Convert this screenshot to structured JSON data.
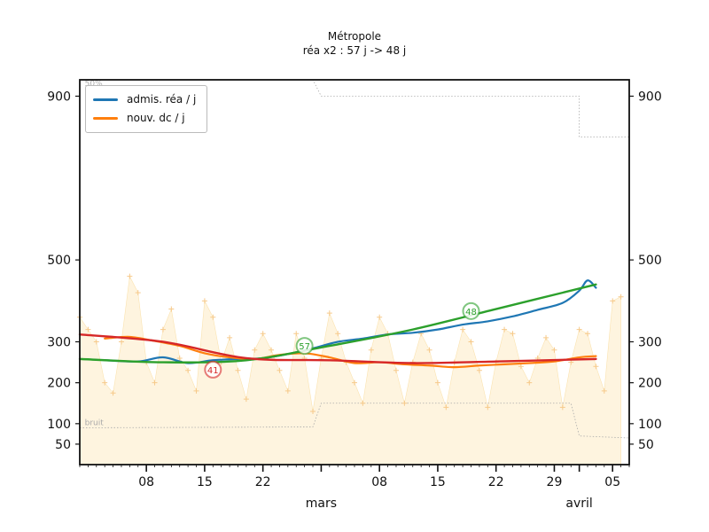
{
  "chart_data": {
    "type": "line",
    "title": "Métropole",
    "subtitle": "réa x2 : 57 j -> 48 j",
    "ylim": [
      0,
      940
    ],
    "grid": false,
    "legend_position": "top-left",
    "y_ticks": [
      50,
      100,
      200,
      300,
      500,
      900
    ],
    "x_ticks": [
      {
        "day": 8,
        "label": "08"
      },
      {
        "day": 15,
        "label": "15"
      },
      {
        "day": 22,
        "label": "22"
      },
      {
        "day": 29,
        "label": ""
      },
      {
        "day": 36,
        "label": "08"
      },
      {
        "day": 43,
        "label": "15"
      },
      {
        "day": 50,
        "label": "22"
      },
      {
        "day": 57,
        "label": "29"
      },
      {
        "day": 60,
        "label": ""
      },
      {
        "day": 64,
        "label": "05"
      }
    ],
    "month_labels": [
      {
        "day": 29,
        "label": "mars"
      },
      {
        "day": 60,
        "label": "avril"
      }
    ],
    "band_top_label": "50%",
    "band_bottom_label": "bruit",
    "series": [
      {
        "name": "admis. réa / j",
        "color": "#1f77b4",
        "x": [
          3,
          7,
          10,
          13,
          16,
          19,
          22,
          25,
          28,
          31,
          34,
          37,
          40,
          43,
          46,
          49,
          52,
          55,
          58,
          60,
          61,
          62
        ],
        "y": [
          255,
          252,
          262,
          248,
          255,
          258,
          260,
          270,
          284,
          300,
          308,
          318,
          322,
          330,
          342,
          350,
          362,
          378,
          395,
          425,
          450,
          432
        ]
      },
      {
        "name": "nouv. dc / j",
        "color": "#ff7f0e",
        "x": [
          3,
          6,
          9,
          12,
          15,
          18,
          21,
          24,
          27,
          30,
          33,
          36,
          39,
          42,
          45,
          48,
          51,
          54,
          57,
          60,
          62
        ],
        "y": [
          308,
          312,
          302,
          290,
          272,
          262,
          258,
          268,
          272,
          262,
          248,
          250,
          245,
          242,
          238,
          242,
          245,
          248,
          252,
          262,
          265
        ]
      }
    ],
    "trend_lines": [
      {
        "color": "#2ca02c",
        "x": [
          0,
          10,
          20,
          30,
          40,
          50,
          62
        ],
        "y": [
          258,
          250,
          255,
          290,
          330,
          380,
          440
        ]
      },
      {
        "color": "#d62728",
        "x": [
          0,
          10,
          20,
          30,
          40,
          50,
          62
        ],
        "y": [
          318,
          300,
          260,
          255,
          248,
          252,
          258
        ]
      }
    ],
    "daily_points": {
      "x": [
        0,
        1,
        2,
        3,
        4,
        5,
        6,
        7,
        8,
        9,
        10,
        11,
        12,
        13,
        14,
        15,
        16,
        17,
        18,
        19,
        20,
        21,
        22,
        23,
        24,
        25,
        26,
        27,
        28,
        29,
        30,
        31,
        32,
        33,
        34,
        35,
        36,
        37,
        38,
        39,
        40,
        41,
        42,
        43,
        44,
        45,
        46,
        47,
        48,
        49,
        50,
        51,
        52,
        53,
        54,
        55,
        56,
        57,
        58,
        59,
        60,
        61,
        62,
        63,
        64,
        65
      ],
      "y": [
        360,
        330,
        300,
        200,
        175,
        300,
        460,
        420,
        250,
        200,
        330,
        380,
        260,
        230,
        180,
        400,
        360,
        250,
        310,
        230,
        160,
        280,
        320,
        280,
        230,
        180,
        320,
        260,
        130,
        260,
        370,
        320,
        250,
        200,
        150,
        280,
        360,
        320,
        230,
        150,
        250,
        320,
        280,
        200,
        140,
        250,
        330,
        300,
        230,
        140,
        250,
        330,
        320,
        240,
        200,
        260,
        310,
        280,
        140,
        250,
        330,
        320,
        240,
        180,
        400,
        410
      ]
    },
    "annotations": [
      {
        "x": 16,
        "y": 232,
        "label": "41",
        "color": "#d62728"
      },
      {
        "x": 27,
        "y": 290,
        "label": "57",
        "color": "#2ca02c"
      },
      {
        "x": 47,
        "y": 375,
        "label": "48",
        "color": "#2ca02c"
      }
    ]
  }
}
